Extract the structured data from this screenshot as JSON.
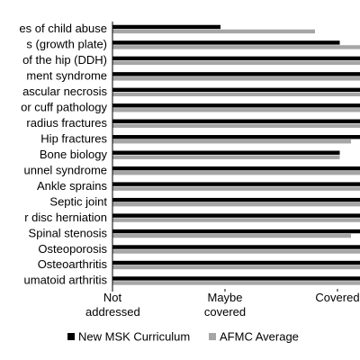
{
  "chart_data": {
    "type": "hbar",
    "categories": [
      "es of child abuse",
      "s (growth plate)",
      "of the hip (DDH)",
      "ment syndrome",
      "ascular necrosis",
      "or cuff pathology",
      "radius fractures",
      "Hip fractures",
      "Bone biology",
      "unnel syndrome",
      "Ankle sprains",
      "Septic joint",
      "r disc herniation",
      "Spinal stenosis",
      "Osteoporosis",
      "Osteoarthritis",
      "umatoid arthritis"
    ],
    "series": [
      {
        "name": "New MSK Curriculum",
        "color": "#000000",
        "values": [
          1.96,
          3.02,
          3.2,
          3.2,
          3.2,
          3.2,
          3.2,
          3.2,
          3.02,
          3.2,
          3.2,
          3.2,
          3.2,
          3.2,
          3.2,
          3.2,
          3.2
        ]
      },
      {
        "name": "AFMC Average",
        "color": "#a6a6a6",
        "values": [
          2.8,
          3.2,
          3.2,
          3.2,
          3.2,
          3.2,
          3.2,
          3.12,
          3.02,
          3.2,
          3.2,
          3.2,
          3.2,
          3.12,
          3.2,
          3.2,
          3.2
        ]
      }
    ],
    "xlim": [
      1,
      3.2
    ],
    "xticks": [
      {
        "value": 1,
        "label": "Not addressed"
      },
      {
        "value": 2,
        "label": "Maybe covered"
      },
      {
        "value": 3,
        "label": "Covered"
      }
    ],
    "legend": "bottom"
  }
}
